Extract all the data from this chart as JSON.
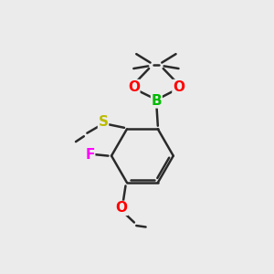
{
  "bg_color": "#ebebeb",
  "bond_color": "#2a2a2a",
  "bond_width": 1.8,
  "atom_colors": {
    "O": "#ff0000",
    "B": "#00bb00",
    "S": "#bbbb00",
    "F": "#ff00ff",
    "C": "#2a2a2a"
  },
  "font_size_atom": 11,
  "font_size_methyl": 9
}
